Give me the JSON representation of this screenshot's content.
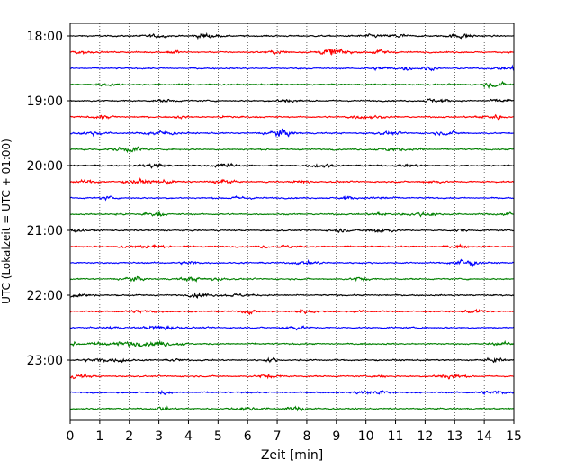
{
  "chart_data": {
    "type": "line",
    "title": "",
    "xlabel": "Zeit  [min]",
    "ylabel": "UTC (Lokalzeit = UTC + 01:00)",
    "xlim": [
      0,
      15
    ],
    "xticks": [
      "0",
      "1",
      "2",
      "3",
      "4",
      "5",
      "6",
      "7",
      "8",
      "9",
      "10",
      "11",
      "12",
      "13",
      "14",
      "15"
    ],
    "yticks": [
      "18:00",
      "19:00",
      "20:00",
      "21:00",
      "22:00",
      "23:00"
    ],
    "grid": "vertical dotted",
    "trace_interval_min": 15,
    "trace_colors": [
      "#000000",
      "#ff0000",
      "#0000ff",
      "#008000"
    ],
    "series": [
      {
        "start": "18:00"
      },
      {
        "start": "18:15"
      },
      {
        "start": "18:30"
      },
      {
        "start": "18:45"
      },
      {
        "start": "19:00"
      },
      {
        "start": "19:15"
      },
      {
        "start": "19:30"
      },
      {
        "start": "19:45"
      },
      {
        "start": "20:00"
      },
      {
        "start": "20:15"
      },
      {
        "start": "20:30"
      },
      {
        "start": "20:45"
      },
      {
        "start": "21:00"
      },
      {
        "start": "21:15"
      },
      {
        "start": "21:30"
      },
      {
        "start": "21:45"
      },
      {
        "start": "22:00"
      },
      {
        "start": "22:15"
      },
      {
        "start": "22:30"
      },
      {
        "start": "22:45"
      },
      {
        "start": "23:00"
      },
      {
        "start": "23:15"
      },
      {
        "start": "23:30"
      },
      {
        "start": "23:45"
      }
    ]
  }
}
